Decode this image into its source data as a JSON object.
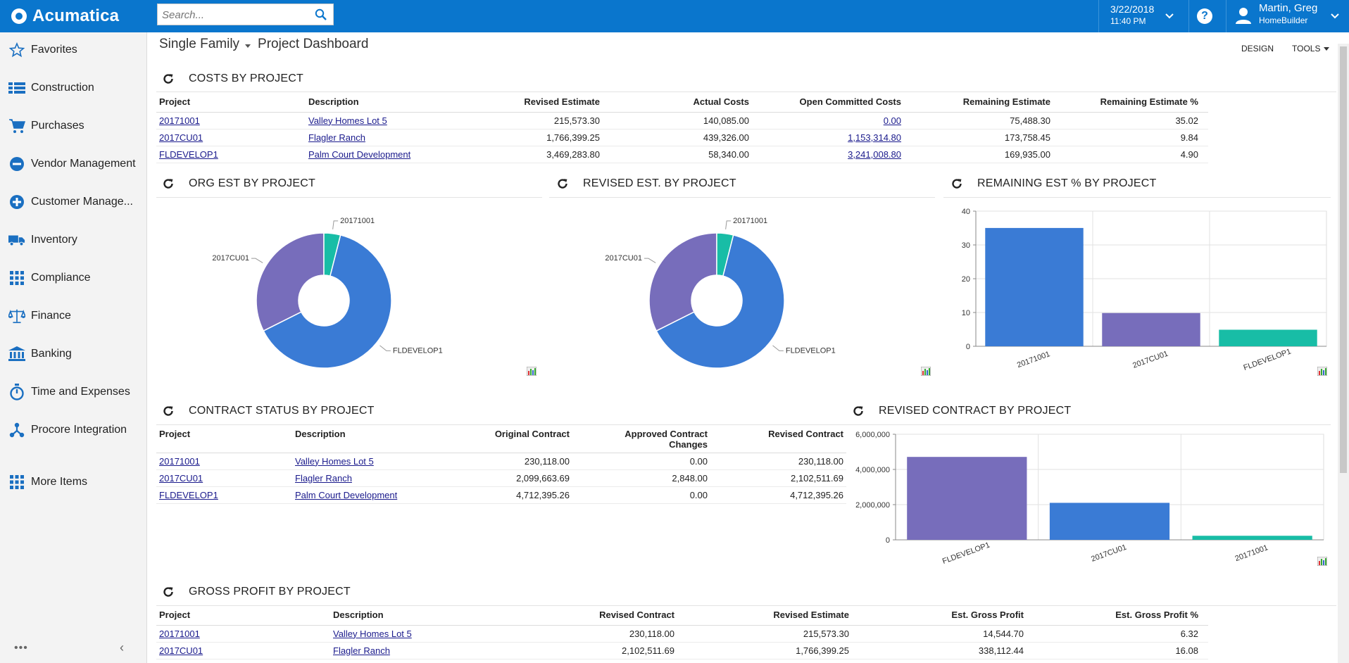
{
  "app": {
    "name": "Acumatica"
  },
  "search": {
    "placeholder": "Search..."
  },
  "header": {
    "date": "3/22/2018",
    "time": "11:40 PM",
    "user_name": "Martin, Greg",
    "company": "HomeBuilder",
    "help": "?"
  },
  "sidebar": {
    "items": [
      {
        "label": "Favorites",
        "icon": "star-icon"
      },
      {
        "label": "Construction",
        "icon": "construction-icon"
      },
      {
        "label": "Purchases",
        "icon": "cart-icon"
      },
      {
        "label": "Vendor Management",
        "icon": "minus-circle-icon"
      },
      {
        "label": "Customer Manage...",
        "icon": "plus-circle-icon"
      },
      {
        "label": "Inventory",
        "icon": "truck-icon"
      },
      {
        "label": "Compliance",
        "icon": "grid-icon"
      },
      {
        "label": "Finance",
        "icon": "scales-icon"
      },
      {
        "label": "Banking",
        "icon": "bank-icon"
      },
      {
        "label": "Time and Expenses",
        "icon": "stopwatch-icon"
      },
      {
        "label": "Procore Integration",
        "icon": "network-icon"
      },
      {
        "label": "More Items",
        "icon": "grid-icon"
      }
    ],
    "dots": "•••",
    "collapse": "‹"
  },
  "page": {
    "crumb_parent": "Single Family",
    "title": "Project Dashboard",
    "design": "DESIGN",
    "tools": "TOOLS"
  },
  "costs": {
    "title": "COSTS BY PROJECT",
    "columns": [
      "Project",
      "Description",
      "Revised Estimate",
      "Actual Costs",
      "Open Committed Costs",
      "Remaining Estimate",
      "Remaining Estimate %"
    ],
    "rows": [
      {
        "project": "20171001",
        "description": "Valley Homes Lot 5",
        "revised_estimate": "215,573.30",
        "actual_costs": "140,085.00",
        "open_committed": "0.00",
        "remaining_estimate": "75,488.30",
        "remaining_pct": "35.02"
      },
      {
        "project": "2017CU01",
        "description": "Flagler Ranch",
        "revised_estimate": "1,766,399.25",
        "actual_costs": "439,326.00",
        "open_committed": "1,153,314.80",
        "remaining_estimate": "173,758.45",
        "remaining_pct": "9.84"
      },
      {
        "project": "FLDEVELOP1",
        "description": "Palm Court Development",
        "revised_estimate": "3,469,283.80",
        "actual_costs": "58,340.00",
        "open_committed": "3,241,008.80",
        "remaining_estimate": "169,935.00",
        "remaining_pct": "4.90"
      }
    ]
  },
  "org_est": {
    "title": "ORG EST BY PROJECT",
    "chart_data": {
      "type": "pie",
      "donut": true,
      "slices": [
        {
          "label": "FLDEVELOP1",
          "value": 3469283.8,
          "color": "#3a7bd5"
        },
        {
          "label": "2017CU01",
          "value": 1766399.25,
          "color": "#776dbb"
        },
        {
          "label": "20171001",
          "value": 215573.3,
          "color": "#18bda6"
        }
      ]
    }
  },
  "revised_est": {
    "title": "REVISED EST. BY PROJECT",
    "chart_data": {
      "type": "pie",
      "donut": true,
      "slices": [
        {
          "label": "FLDEVELOP1",
          "value": 3469283.8,
          "color": "#3a7bd5"
        },
        {
          "label": "2017CU01",
          "value": 1766399.25,
          "color": "#776dbb"
        },
        {
          "label": "20171001",
          "value": 215573.3,
          "color": "#18bda6"
        }
      ]
    }
  },
  "remaining_pct_chart": {
    "title": "REMAINING EST % BY PROJECT",
    "chart_data": {
      "type": "bar",
      "categories": [
        "20171001",
        "2017CU01",
        "FLDEVELOP1"
      ],
      "values": [
        35.02,
        9.84,
        4.9
      ],
      "colors": [
        "#3a7bd5",
        "#776dbb",
        "#18bda6"
      ],
      "ylim": [
        0,
        40
      ],
      "yticks": [
        0,
        10,
        20,
        30,
        40
      ],
      "ytick_labels": [
        "0",
        "10",
        "20",
        "30",
        "40"
      ],
      "grid": true
    }
  },
  "contract_status": {
    "title": "CONTRACT STATUS BY PROJECT",
    "columns": [
      "Project",
      "Description",
      "Original Contract",
      "Approved Contract Changes",
      "Revised Contract"
    ],
    "rows": [
      {
        "project": "20171001",
        "description": "Valley Homes Lot 5",
        "original": "230,118.00",
        "approved": "0.00",
        "revised": "230,118.00"
      },
      {
        "project": "2017CU01",
        "description": "Flagler Ranch",
        "original": "2,099,663.69",
        "approved": "2,848.00",
        "revised": "2,102,511.69"
      },
      {
        "project": "FLDEVELOP1",
        "description": "Palm Court Development",
        "original": "4,712,395.26",
        "approved": "0.00",
        "revised": "4,712,395.26"
      }
    ]
  },
  "revised_contract_chart": {
    "title": "REVISED CONTRACT BY PROJECT",
    "chart_data": {
      "type": "bar",
      "categories": [
        "FLDEVELOP1",
        "2017CU01",
        "20171001"
      ],
      "values": [
        4712395.26,
        2102511.69,
        230118.0
      ],
      "colors": [
        "#776dbb",
        "#3a7bd5",
        "#18bda6"
      ],
      "ylim": [
        0,
        6000000
      ],
      "yticks": [
        0,
        2000000,
        4000000,
        6000000
      ],
      "ytick_labels": [
        "0",
        "2,000,000",
        "4,000,000",
        "6,000,000"
      ],
      "grid": true
    }
  },
  "gross_profit": {
    "title": "GROSS PROFIT BY PROJECT",
    "columns": [
      "Project",
      "Description",
      "Revised Contract",
      "Revised Estimate",
      "Est. Gross Profit",
      "Est. Gross Profit %"
    ],
    "rows": [
      {
        "project": "20171001",
        "description": "Valley Homes Lot 5",
        "revised_contract": "230,118.00",
        "revised_estimate": "215,573.30",
        "gross_profit": "14,544.70",
        "gross_pct": "6.32"
      },
      {
        "project": "2017CU01",
        "description": "Flagler Ranch",
        "revised_contract": "2,102,511.69",
        "revised_estimate": "1,766,399.25",
        "gross_profit": "338,112.44",
        "gross_pct": "16.08"
      }
    ]
  }
}
